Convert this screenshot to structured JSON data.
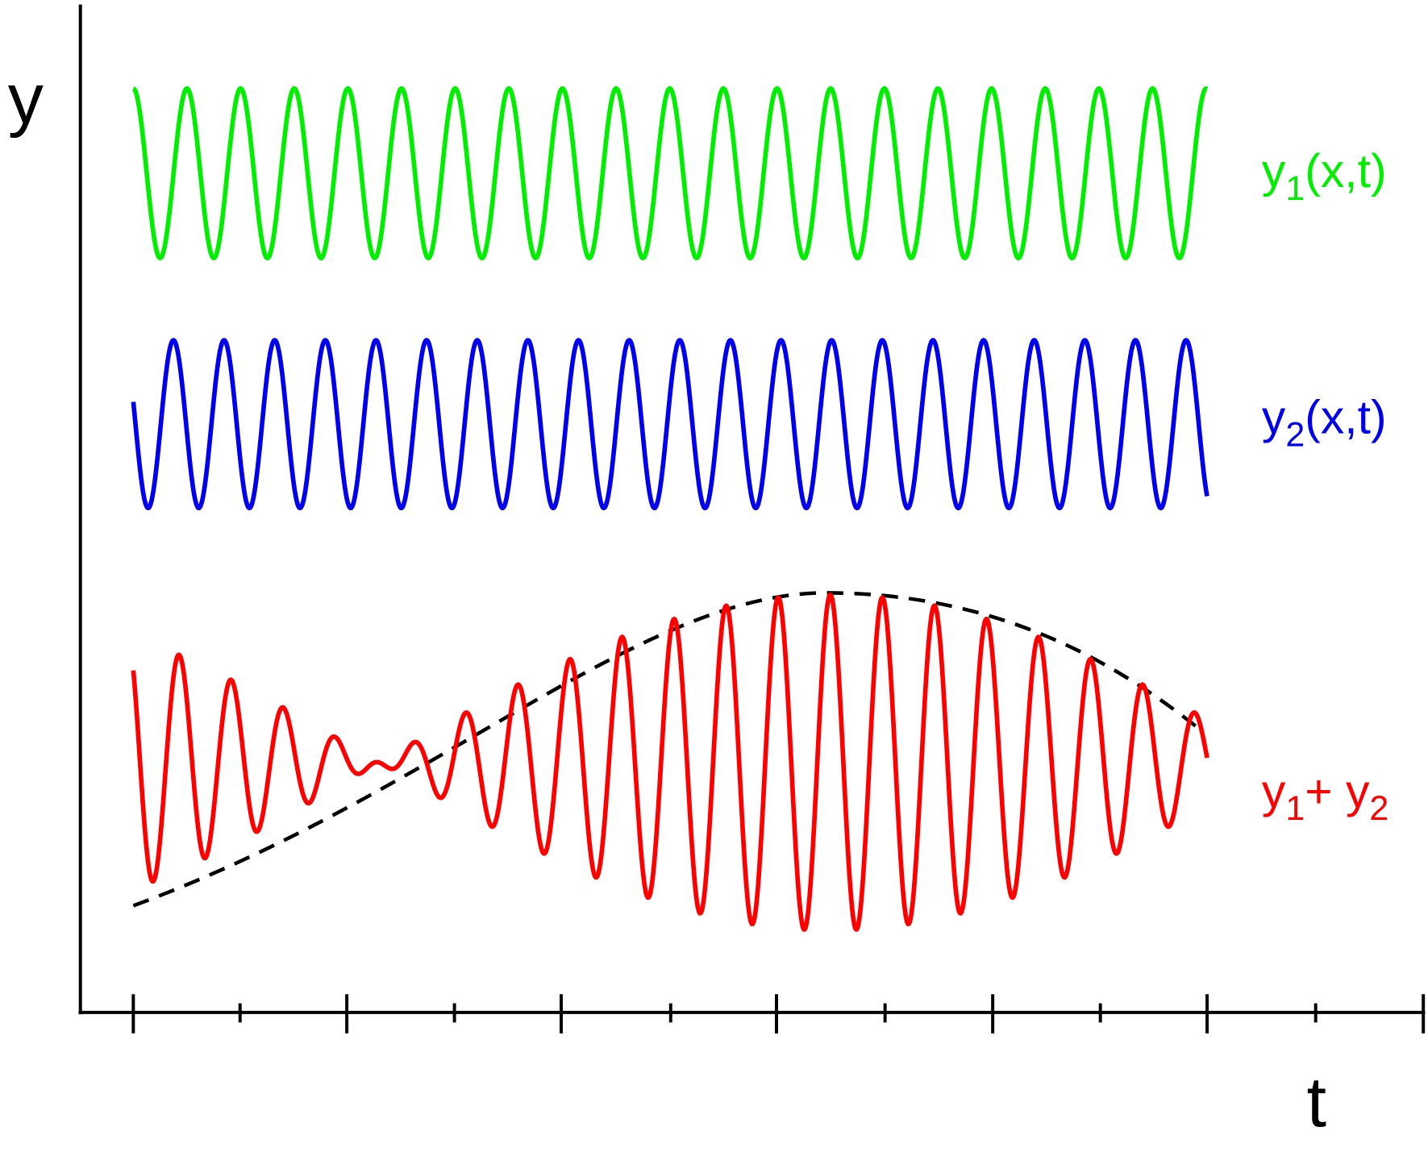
{
  "axes": {
    "y_label": "y",
    "x_label": "t"
  },
  "curves": [
    {
      "color": "#00ee00",
      "label": [
        {
          "text": "y",
          "sub": false
        },
        {
          "text": "1",
          "sub": true
        },
        {
          "text": "(x,t)",
          "sub": false
        }
      ]
    },
    {
      "color": "#0000ee",
      "label": [
        {
          "text": "y",
          "sub": false
        },
        {
          "text": "2",
          "sub": true
        },
        {
          "text": "(x,t)",
          "sub": false
        }
      ]
    },
    {
      "color": "#ff0000",
      "label": [
        {
          "text": "y",
          "sub": false
        },
        {
          "text": "1",
          "sub": true
        },
        {
          "text": "+ y",
          "sub": false
        },
        {
          "text": "2",
          "sub": true
        }
      ]
    }
  ]
}
